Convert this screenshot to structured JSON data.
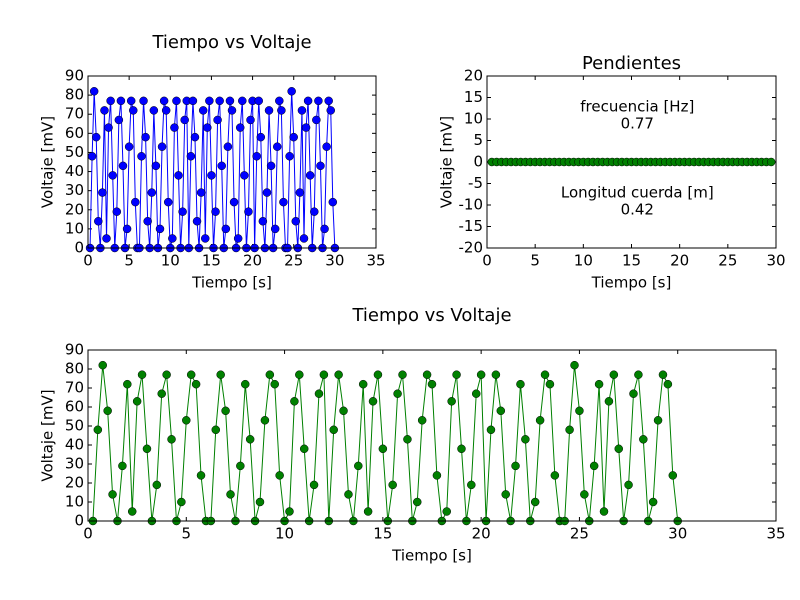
{
  "chart_data": [
    {
      "type": "line",
      "title": "Tiempo vs Voltaje",
      "xlabel": "Tiempo [s]",
      "ylabel": "Voltaje [mV]",
      "xlim": [
        0,
        35
      ],
      "ylim": [
        0,
        90
      ],
      "xticks": [
        0,
        5,
        10,
        15,
        20,
        25,
        30,
        35
      ],
      "yticks": [
        0,
        10,
        20,
        30,
        40,
        50,
        60,
        70,
        80,
        90
      ],
      "x": [
        0.25,
        0.5,
        0.75,
        1,
        1.25,
        1.5,
        1.75,
        2,
        2.25,
        2.5,
        2.75,
        3,
        3.25,
        3.5,
        3.75,
        4,
        4.25,
        4.5,
        4.75,
        5,
        5.25,
        5.5,
        5.75,
        6,
        6.25,
        6.5,
        6.75,
        7,
        7.25,
        7.5,
        7.75,
        8,
        8.25,
        8.5,
        8.75,
        9,
        9.25,
        9.5,
        9.75,
        10,
        10.25,
        10.5,
        10.75,
        11,
        11.25,
        11.5,
        11.75,
        12,
        12.25,
        12.5,
        12.75,
        13,
        13.25,
        13.5,
        13.75,
        14,
        14.25,
        14.5,
        14.75,
        15,
        15.25,
        15.5,
        15.75,
        16,
        16.25,
        16.5,
        16.75,
        17,
        17.25,
        17.5,
        17.75,
        18,
        18.25,
        18.5,
        18.75,
        19,
        19.25,
        19.5,
        19.75,
        20,
        20.25,
        20.5,
        20.75,
        21,
        21.25,
        21.5,
        21.75,
        22,
        22.25,
        22.5,
        22.75,
        23,
        23.25,
        23.5,
        23.75,
        24,
        24.25,
        24.5,
        24.75,
        25,
        25.25,
        25.5,
        25.75,
        26,
        26.25,
        26.5,
        26.75,
        27,
        27.25,
        27.5,
        27.75,
        28,
        28.25,
        28.5,
        28.75,
        29,
        29.25,
        29.5,
        29.75,
        30
      ],
      "series": [
        {
          "color": "#0000ff",
          "values": [
            0,
            48,
            82,
            58,
            14,
            0,
            29,
            72,
            5,
            63,
            77,
            38,
            0,
            19,
            67,
            77,
            43,
            0,
            10,
            53,
            77,
            72,
            24,
            0,
            0,
            48,
            77,
            58,
            14,
            0,
            29,
            72,
            43,
            0,
            10,
            53,
            77,
            72,
            24,
            0,
            5,
            63,
            77,
            38,
            0,
            19,
            67,
            77,
            0,
            48,
            77,
            58,
            14,
            0,
            29,
            72,
            5,
            63,
            77,
            38,
            0,
            19,
            67,
            77,
            43,
            0,
            10,
            53,
            77,
            72,
            24,
            0,
            5,
            63,
            77,
            38,
            0,
            19,
            67,
            77,
            0,
            48,
            77,
            58,
            14,
            0,
            29,
            72,
            43,
            0,
            10,
            53,
            77,
            72,
            24,
            0,
            0,
            48,
            82,
            58,
            14,
            0,
            29,
            72,
            5,
            63,
            77,
            38,
            0,
            19,
            67,
            77,
            43,
            0,
            10,
            53,
            77,
            72,
            24,
            0
          ]
        }
      ]
    },
    {
      "type": "line",
      "title": "Pendientes",
      "ylabel": "Voltaje [mV]",
      "xlabel": "Tiempo [s]",
      "xlim": [
        0,
        30
      ],
      "ylim": [
        -20,
        20
      ],
      "xticks": [
        0,
        5,
        10,
        15,
        20,
        25,
        30
      ],
      "yticks": [
        -20,
        -15,
        -10,
        -5,
        0,
        5,
        10,
        15,
        20
      ],
      "annotations": [
        "frecuencia [Hz]",
        "0.77",
        "Longitud cuerda [m]",
        "0.42"
      ],
      "x": [
        0.5,
        1,
        1.5,
        2,
        2.5,
        3,
        3.5,
        4,
        4.5,
        5,
        5.5,
        6,
        6.5,
        7,
        7.5,
        8,
        8.5,
        9,
        9.5,
        10,
        10.5,
        11,
        11.5,
        12,
        12.5,
        13,
        13.5,
        14,
        14.5,
        15,
        15.5,
        16,
        16.5,
        17,
        17.5,
        18,
        18.5,
        19,
        19.5,
        20,
        20.5,
        21,
        21.5,
        22,
        22.5,
        23,
        23.5,
        24,
        24.5,
        25,
        25.5,
        26,
        26.5,
        27,
        27.5,
        28,
        28.5,
        29,
        29.5
      ],
      "series": [
        {
          "color": "#008000",
          "values": [
            0,
            0,
            0,
            0,
            0,
            0,
            0,
            0,
            0,
            0,
            0,
            0,
            0,
            0,
            0,
            0,
            0,
            0,
            0,
            0,
            0,
            0,
            0,
            0,
            0,
            0,
            0,
            0,
            0,
            0,
            0,
            0,
            0,
            0,
            0,
            0,
            0,
            0,
            0,
            0,
            0,
            0,
            0,
            0,
            0,
            0,
            0,
            0,
            0,
            0,
            0,
            0,
            0,
            0,
            0,
            0,
            0,
            0,
            0
          ]
        }
      ]
    },
    {
      "type": "line",
      "title": "Tiempo vs Voltaje",
      "xlabel": "Tiempo [s]",
      "ylabel": "Voltaje [mV]",
      "xlim": [
        0,
        35
      ],
      "ylim": [
        0,
        90
      ],
      "xticks": [
        0,
        5,
        10,
        15,
        20,
        25,
        30,
        35
      ],
      "yticks": [
        0,
        10,
        20,
        30,
        40,
        50,
        60,
        70,
        80,
        90
      ],
      "x": [
        0.25,
        0.5,
        0.75,
        1,
        1.25,
        1.5,
        1.75,
        2,
        2.25,
        2.5,
        2.75,
        3,
        3.25,
        3.5,
        3.75,
        4,
        4.25,
        4.5,
        4.75,
        5,
        5.25,
        5.5,
        5.75,
        6,
        6.25,
        6.5,
        6.75,
        7,
        7.25,
        7.5,
        7.75,
        8,
        8.25,
        8.5,
        8.75,
        9,
        9.25,
        9.5,
        9.75,
        10,
        10.25,
        10.5,
        10.75,
        11,
        11.25,
        11.5,
        11.75,
        12,
        12.25,
        12.5,
        12.75,
        13,
        13.25,
        13.5,
        13.75,
        14,
        14.25,
        14.5,
        14.75,
        15,
        15.25,
        15.5,
        15.75,
        16,
        16.25,
        16.5,
        16.75,
        17,
        17.25,
        17.5,
        17.75,
        18,
        18.25,
        18.5,
        18.75,
        19,
        19.25,
        19.5,
        19.75,
        20,
        20.25,
        20.5,
        20.75,
        21,
        21.25,
        21.5,
        21.75,
        22,
        22.25,
        22.5,
        22.75,
        23,
        23.25,
        23.5,
        23.75,
        24,
        24.25,
        24.5,
        24.75,
        25,
        25.25,
        25.5,
        25.75,
        26,
        26.25,
        26.5,
        26.75,
        27,
        27.25,
        27.5,
        27.75,
        28,
        28.25,
        28.5,
        28.75,
        29,
        29.25,
        29.5,
        29.75,
        30
      ],
      "series": [
        {
          "color": "#008000",
          "values": [
            0,
            48,
            82,
            58,
            14,
            0,
            29,
            72,
            5,
            63,
            77,
            38,
            0,
            19,
            67,
            77,
            43,
            0,
            10,
            53,
            77,
            72,
            24,
            0,
            0,
            48,
            77,
            58,
            14,
            0,
            29,
            72,
            43,
            0,
            10,
            53,
            77,
            72,
            24,
            0,
            5,
            63,
            77,
            38,
            0,
            19,
            67,
            77,
            0,
            48,
            77,
            58,
            14,
            0,
            29,
            72,
            5,
            63,
            77,
            38,
            0,
            19,
            67,
            77,
            43,
            0,
            10,
            53,
            77,
            72,
            24,
            0,
            5,
            63,
            77,
            38,
            0,
            19,
            67,
            77,
            0,
            48,
            77,
            58,
            14,
            0,
            29,
            72,
            43,
            0,
            10,
            53,
            77,
            72,
            24,
            0,
            0,
            48,
            82,
            58,
            14,
            0,
            29,
            72,
            5,
            63,
            77,
            38,
            0,
            19,
            67,
            77,
            43,
            0,
            10,
            53,
            77,
            72,
            24,
            0
          ]
        }
      ]
    }
  ]
}
